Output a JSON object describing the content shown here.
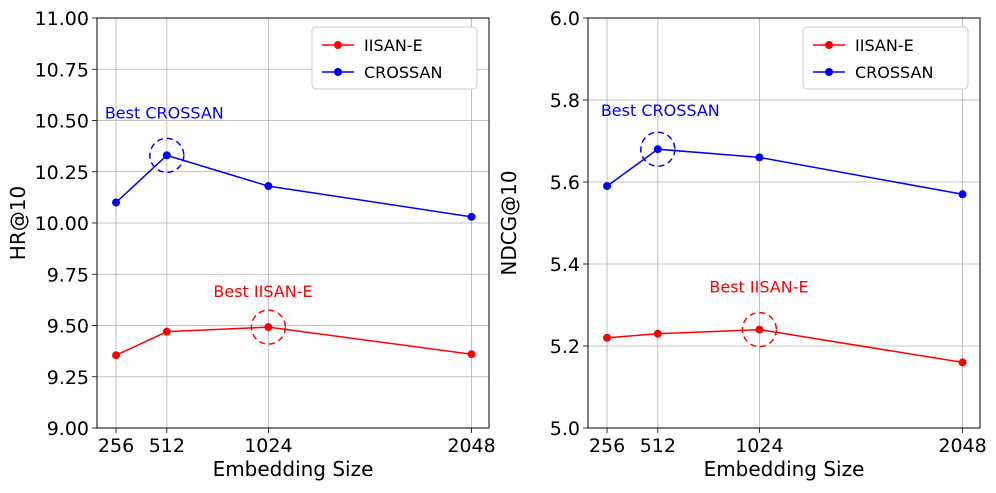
{
  "chart_data": [
    {
      "type": "line",
      "xlabel": "Embedding Size",
      "ylabel": "HR@10",
      "x": [
        256,
        512,
        1024,
        2048
      ],
      "xticks": [
        "256",
        "512",
        "1024",
        "2048"
      ],
      "xlim": [
        160,
        2136
      ],
      "ylim": [
        9.0,
        11.0
      ],
      "yticks": [
        "9.00",
        "9.25",
        "9.50",
        "9.75",
        "10.00",
        "10.25",
        "10.50",
        "10.75",
        "11.00"
      ],
      "grid": true,
      "legend_position": "top-right",
      "series": [
        {
          "name": "IISAN-E",
          "color": "#ff0000",
          "values": [
            9.355,
            9.47,
            9.492,
            9.36
          ]
        },
        {
          "name": "CROSSAN",
          "color": "#0000ff",
          "values": [
            10.1,
            10.33,
            10.18,
            10.03
          ]
        }
      ],
      "annotations": [
        {
          "text": "Best CROSSAN",
          "color": "#0000ff",
          "x": 512,
          "y": 10.33
        },
        {
          "text": "Best IISAN-E",
          "color": "#ff0000",
          "x": 1024,
          "y": 9.492
        }
      ]
    },
    {
      "type": "line",
      "xlabel": "Embedding Size",
      "ylabel": "NDCG@10",
      "x": [
        256,
        512,
        1024,
        2048
      ],
      "xticks": [
        "256",
        "512",
        "1024",
        "2048"
      ],
      "xlim": [
        160,
        2136
      ],
      "ylim": [
        5.0,
        6.0
      ],
      "yticks": [
        "5.0",
        "5.2",
        "5.4",
        "5.6",
        "5.8",
        "6.0"
      ],
      "grid": true,
      "legend_position": "top-right",
      "series": [
        {
          "name": "IISAN-E",
          "color": "#ff0000",
          "values": [
            5.22,
            5.23,
            5.24,
            5.16
          ]
        },
        {
          "name": "CROSSAN",
          "color": "#0000ff",
          "values": [
            5.59,
            5.68,
            5.66,
            5.57
          ]
        }
      ],
      "annotations": [
        {
          "text": "Best CROSSAN",
          "color": "#0000ff",
          "x": 512,
          "y": 5.68
        },
        {
          "text": "Best IISAN-E",
          "color": "#ff0000",
          "x": 1024,
          "y": 5.24
        }
      ]
    }
  ]
}
